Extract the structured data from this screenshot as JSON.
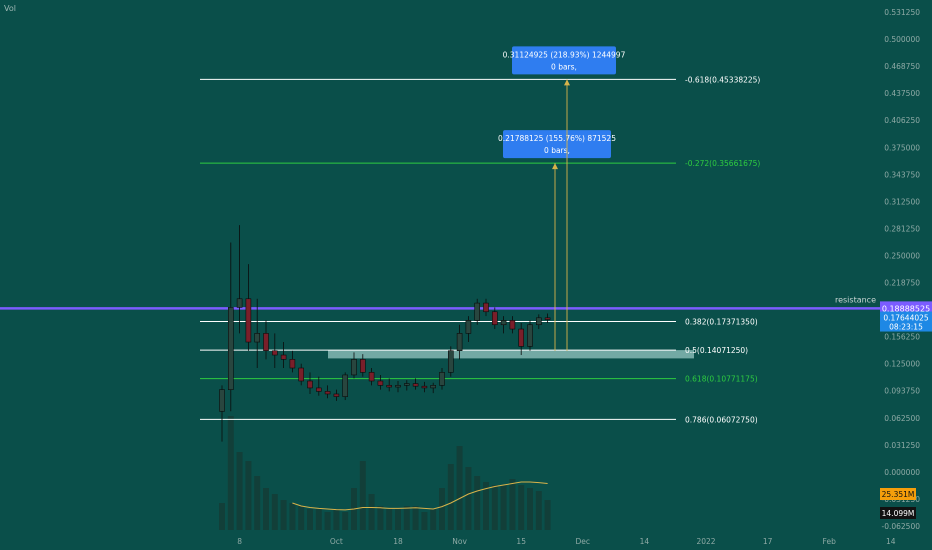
{
  "symbol_label": "Vol",
  "chart_data": {
    "type": "candlestick",
    "y_ticks": [
      {
        "value": 0.53125,
        "label": "0.531250"
      },
      {
        "value": 0.5,
        "label": "0.500000"
      },
      {
        "value": 0.46875,
        "label": "0.468750"
      },
      {
        "value": 0.4375,
        "label": "0.437500"
      },
      {
        "value": 0.40625,
        "label": "0.406250"
      },
      {
        "value": 0.375,
        "label": "0.375000"
      },
      {
        "value": 0.34375,
        "label": "0.343750"
      },
      {
        "value": 0.3125,
        "label": "0.312500"
      },
      {
        "value": 0.28125,
        "label": "0.281250"
      },
      {
        "value": 0.25,
        "label": "0.250000"
      },
      {
        "value": 0.21875,
        "label": "0.218750"
      },
      {
        "value": 0.15625,
        "label": "0.156250"
      },
      {
        "value": 0.125,
        "label": "0.125000"
      },
      {
        "value": 0.09375,
        "label": "0.093750"
      },
      {
        "value": 0.0625,
        "label": "0.062500"
      },
      {
        "value": 0.03125,
        "label": "0.031250"
      },
      {
        "value": 0.0,
        "label": "0.000000"
      },
      {
        "value": -0.03125,
        "label": "-0.031250"
      },
      {
        "value": -0.0625,
        "label": "-0.062500"
      }
    ],
    "x_ticks": [
      {
        "index": 2,
        "label": "8"
      },
      {
        "index": 13,
        "label": "Oct"
      },
      {
        "index": 20,
        "label": "18"
      },
      {
        "index": 27,
        "label": "Nov"
      },
      {
        "index": 34,
        "label": "15"
      },
      {
        "index": 41,
        "label": "Dec"
      },
      {
        "index": 48,
        "label": "14"
      },
      {
        "index": 55,
        "label": "2022"
      },
      {
        "index": 62,
        "label": "17"
      },
      {
        "index": 69,
        "label": "Feb"
      },
      {
        "index": 76,
        "label": "14"
      }
    ],
    "candles": [
      {
        "o": 0.07,
        "h": 0.1,
        "l": 0.035,
        "c": 0.095
      },
      {
        "o": 0.095,
        "h": 0.265,
        "l": 0.07,
        "c": 0.19
      },
      {
        "o": 0.19,
        "h": 0.285,
        "l": 0.16,
        "c": 0.2
      },
      {
        "o": 0.2,
        "h": 0.24,
        "l": 0.14,
        "c": 0.15
      },
      {
        "o": 0.15,
        "h": 0.2,
        "l": 0.12,
        "c": 0.16
      },
      {
        "o": 0.16,
        "h": 0.175,
        "l": 0.13,
        "c": 0.14
      },
      {
        "o": 0.14,
        "h": 0.16,
        "l": 0.12,
        "c": 0.135
      },
      {
        "o": 0.135,
        "h": 0.15,
        "l": 0.12,
        "c": 0.13
      },
      {
        "o": 0.13,
        "h": 0.14,
        "l": 0.115,
        "c": 0.12
      },
      {
        "o": 0.12,
        "h": 0.125,
        "l": 0.1,
        "c": 0.105
      },
      {
        "o": 0.105,
        "h": 0.115,
        "l": 0.09,
        "c": 0.097
      },
      {
        "o": 0.097,
        "h": 0.11,
        "l": 0.088,
        "c": 0.093
      },
      {
        "o": 0.093,
        "h": 0.1,
        "l": 0.085,
        "c": 0.09
      },
      {
        "o": 0.09,
        "h": 0.095,
        "l": 0.082,
        "c": 0.087
      },
      {
        "o": 0.087,
        "h": 0.115,
        "l": 0.083,
        "c": 0.112
      },
      {
        "o": 0.112,
        "h": 0.138,
        "l": 0.108,
        "c": 0.13
      },
      {
        "o": 0.13,
        "h": 0.136,
        "l": 0.11,
        "c": 0.115
      },
      {
        "o": 0.115,
        "h": 0.12,
        "l": 0.1,
        "c": 0.105
      },
      {
        "o": 0.105,
        "h": 0.112,
        "l": 0.095,
        "c": 0.1
      },
      {
        "o": 0.1,
        "h": 0.108,
        "l": 0.093,
        "c": 0.098
      },
      {
        "o": 0.098,
        "h": 0.105,
        "l": 0.092,
        "c": 0.1
      },
      {
        "o": 0.1,
        "h": 0.106,
        "l": 0.094,
        "c": 0.102
      },
      {
        "o": 0.102,
        "h": 0.108,
        "l": 0.095,
        "c": 0.099
      },
      {
        "o": 0.099,
        "h": 0.104,
        "l": 0.092,
        "c": 0.097
      },
      {
        "o": 0.097,
        "h": 0.103,
        "l": 0.091,
        "c": 0.1
      },
      {
        "o": 0.1,
        "h": 0.12,
        "l": 0.095,
        "c": 0.115
      },
      {
        "o": 0.115,
        "h": 0.145,
        "l": 0.11,
        "c": 0.14
      },
      {
        "o": 0.14,
        "h": 0.17,
        "l": 0.13,
        "c": 0.16
      },
      {
        "o": 0.16,
        "h": 0.18,
        "l": 0.15,
        "c": 0.175
      },
      {
        "o": 0.175,
        "h": 0.2,
        "l": 0.17,
        "c": 0.195
      },
      {
        "o": 0.195,
        "h": 0.2,
        "l": 0.18,
        "c": 0.185
      },
      {
        "o": 0.185,
        "h": 0.19,
        "l": 0.165,
        "c": 0.17
      },
      {
        "o": 0.17,
        "h": 0.18,
        "l": 0.16,
        "c": 0.175
      },
      {
        "o": 0.175,
        "h": 0.18,
        "l": 0.16,
        "c": 0.165
      },
      {
        "o": 0.165,
        "h": 0.172,
        "l": 0.135,
        "c": 0.145
      },
      {
        "o": 0.145,
        "h": 0.175,
        "l": 0.14,
        "c": 0.17
      },
      {
        "o": 0.17,
        "h": 0.182,
        "l": 0.165,
        "c": 0.178
      },
      {
        "o": 0.178,
        "h": 0.183,
        "l": 0.172,
        "c": 0.176
      }
    ],
    "volumes": [
      0.9,
      3.8,
      2.6,
      2.3,
      1.8,
      1.4,
      1.2,
      1.0,
      0.9,
      0.8,
      0.7,
      0.7,
      0.6,
      0.7,
      0.6,
      1.4,
      2.3,
      1.2,
      0.8,
      0.7,
      0.7,
      0.8,
      0.8,
      0.6,
      0.7,
      1.4,
      2.2,
      2.8,
      2.1,
      1.8,
      1.6,
      1.5,
      1.5,
      1.7,
      1.5,
      1.4,
      1.3,
      1.0
    ],
    "ma": [
      null,
      null,
      null,
      null,
      null,
      null,
      null,
      null,
      0.9,
      0.8,
      0.75,
      0.72,
      0.7,
      0.68,
      0.67,
      0.7,
      0.75,
      0.75,
      0.74,
      0.72,
      0.72,
      0.73,
      0.74,
      0.72,
      0.7,
      0.78,
      0.9,
      1.05,
      1.2,
      1.3,
      1.38,
      1.45,
      1.5,
      1.55,
      1.6,
      1.6,
      1.58,
      1.55
    ],
    "fib_levels": [
      {
        "value": 0.45338225,
        "label": "-0.618(0.45338225)",
        "color": "#ffffff"
      },
      {
        "value": 0.35661675,
        "label": "-0.272(0.35661675)",
        "color": "#2ecc40"
      },
      {
        "value": 0.1737135,
        "label": "0.382(0.17371350)",
        "color": "#ffffff"
      },
      {
        "value": 0.1407125,
        "label": "0.5(0.14071250)",
        "color": "#ffffff"
      },
      {
        "value": 0.10771175,
        "label": "0.618(0.10771175)",
        "color": "#2ecc40"
      },
      {
        "value": 0.0607275,
        "label": "0.786(0.06072750)",
        "color": "#ffffff"
      }
    ],
    "resistance": {
      "value": 0.18888525,
      "label": "resistance",
      "color": "#7b5cff"
    },
    "zone": {
      "from": 0.1311,
      "to": 0.1407
    },
    "projections": [
      {
        "target": 0.35661675,
        "text_line1": "0.21788125 (155.76%) 871525",
        "text_line2": "0 bars,"
      },
      {
        "target": 0.45338225,
        "text_line1": "0.31124925 (218.93%) 1244997",
        "text_line2": "0 bars,"
      }
    ],
    "price_labels": {
      "resistance": "0.18888525",
      "last_price": "0.17644025",
      "countdown": "08:23:15",
      "volume_ma": "25.351M",
      "volume": "14.099M"
    },
    "colors": {
      "background": "#0a4f4a",
      "up": "#29463f",
      "down": "#7a1f2a",
      "volume": "#123f39",
      "ma": "#d8b34a",
      "last_price_badge": "#1e88e5",
      "projection_box": "#2f7df0",
      "volume_ma_badge": "#f59e0b",
      "volume_badge": "#111111"
    }
  }
}
